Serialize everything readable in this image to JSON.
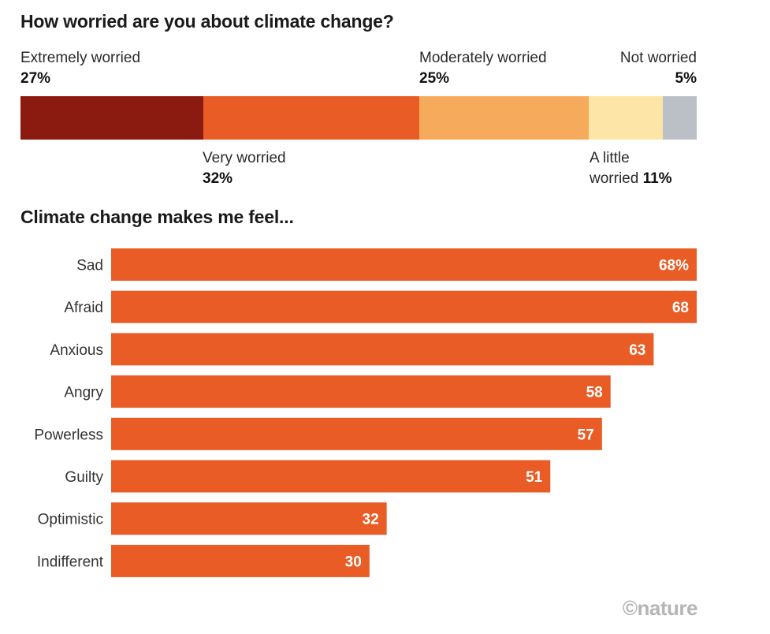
{
  "chart_data": [
    {
      "type": "bar",
      "orientation": "horizontal-stacked",
      "title": "How worried are you about climate change?",
      "series": [
        {
          "name": "Extremely worried",
          "value": 27,
          "label": "27%",
          "color": "#8b1a10"
        },
        {
          "name": "Very worried",
          "value": 32,
          "label": "32%",
          "color": "#e95c25"
        },
        {
          "name": "Moderately worried",
          "value": 25,
          "label": "25%",
          "color": "#f6aa5c"
        },
        {
          "name": "A little worried",
          "value": 11,
          "label": "11%",
          "color": "#fde5a8"
        },
        {
          "name": "Not worried",
          "value": 5,
          "label": "5%",
          "color": "#bbbfc6"
        }
      ],
      "label_lines": {
        "a_little_1": "A little",
        "a_little_2": "worried"
      }
    },
    {
      "type": "bar",
      "orientation": "horizontal",
      "title": "Climate change makes me feel...",
      "categories": [
        "Sad",
        "Afraid",
        "Anxious",
        "Angry",
        "Powerless",
        "Guilty",
        "Optimistic",
        "Indifferent"
      ],
      "values": [
        68,
        68,
        63,
        58,
        57,
        51,
        32,
        30
      ],
      "value_labels": [
        "68%",
        "68",
        "63",
        "58",
        "57",
        "51",
        "32",
        "30"
      ],
      "xlim": [
        0,
        68
      ],
      "bar_color": "#e95c25",
      "label_color": "#ffffff"
    }
  ],
  "credit": "©nature"
}
